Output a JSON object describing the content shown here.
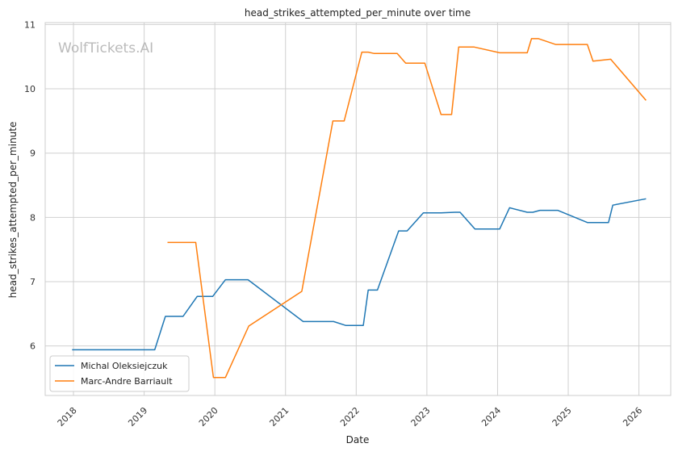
{
  "chart_data": {
    "type": "line",
    "title": "head_strikes_attempted_per_minute over time",
    "xlabel": "Date",
    "ylabel": "head_strikes_attempted_per_minute",
    "watermark": "WolfTickets.AI",
    "xlim": [
      2017.6,
      2026.45
    ],
    "ylim": [
      5.23,
      11.03
    ],
    "x_ticks": [
      2018,
      2019,
      2020,
      2021,
      2022,
      2023,
      2024,
      2025,
      2026
    ],
    "x_tick_labels": [
      "2018",
      "2019",
      "2020",
      "2021",
      "2022",
      "2023",
      "2024",
      "2025",
      "2026"
    ],
    "y_ticks": [
      6,
      7,
      8,
      9,
      10,
      11
    ],
    "y_tick_labels": [
      "6",
      "7",
      "8",
      "9",
      "10",
      "11"
    ],
    "grid": true,
    "legend_position": "lower-left",
    "series": [
      {
        "name": "Michal Oleksiejczuk",
        "color": "#1f77b4",
        "points": [
          [
            2017.98,
            5.94
          ],
          [
            2019.15,
            5.94
          ],
          [
            2019.3,
            6.46
          ],
          [
            2019.55,
            6.46
          ],
          [
            2019.75,
            6.77
          ],
          [
            2019.97,
            6.77
          ],
          [
            2020.15,
            7.03
          ],
          [
            2020.47,
            7.03
          ],
          [
            2021.25,
            6.38
          ],
          [
            2021.68,
            6.38
          ],
          [
            2021.85,
            6.32
          ],
          [
            2022.1,
            6.32
          ],
          [
            2022.17,
            6.87
          ],
          [
            2022.3,
            6.87
          ],
          [
            2022.6,
            7.79
          ],
          [
            2022.72,
            7.79
          ],
          [
            2022.95,
            8.07
          ],
          [
            2023.2,
            8.07
          ],
          [
            2023.4,
            8.08
          ],
          [
            2023.47,
            8.08
          ],
          [
            2023.68,
            7.82
          ],
          [
            2024.03,
            7.82
          ],
          [
            2024.17,
            8.15
          ],
          [
            2024.42,
            8.08
          ],
          [
            2024.5,
            8.08
          ],
          [
            2024.6,
            8.11
          ],
          [
            2024.85,
            8.11
          ],
          [
            2025.27,
            7.92
          ],
          [
            2025.57,
            7.92
          ],
          [
            2025.63,
            8.19
          ],
          [
            2026.1,
            8.29
          ]
        ]
      },
      {
        "name": "Marc-Andre Barriault",
        "color": "#ff7f0e",
        "points": [
          [
            2019.33,
            7.61
          ],
          [
            2019.73,
            7.61
          ],
          [
            2019.98,
            5.51
          ],
          [
            2020.15,
            5.51
          ],
          [
            2020.48,
            6.31
          ],
          [
            2021.23,
            6.85
          ],
          [
            2021.67,
            9.5
          ],
          [
            2021.83,
            9.5
          ],
          [
            2022.08,
            10.57
          ],
          [
            2022.17,
            10.57
          ],
          [
            2022.25,
            10.55
          ],
          [
            2022.58,
            10.55
          ],
          [
            2022.7,
            10.4
          ],
          [
            2022.97,
            10.4
          ],
          [
            2023.2,
            9.6
          ],
          [
            2023.35,
            9.6
          ],
          [
            2023.45,
            10.65
          ],
          [
            2023.67,
            10.65
          ],
          [
            2024.03,
            10.56
          ],
          [
            2024.42,
            10.56
          ],
          [
            2024.48,
            10.78
          ],
          [
            2024.58,
            10.78
          ],
          [
            2024.82,
            10.69
          ],
          [
            2025.27,
            10.69
          ],
          [
            2025.35,
            10.43
          ],
          [
            2025.6,
            10.46
          ],
          [
            2026.1,
            9.82
          ]
        ]
      }
    ]
  }
}
